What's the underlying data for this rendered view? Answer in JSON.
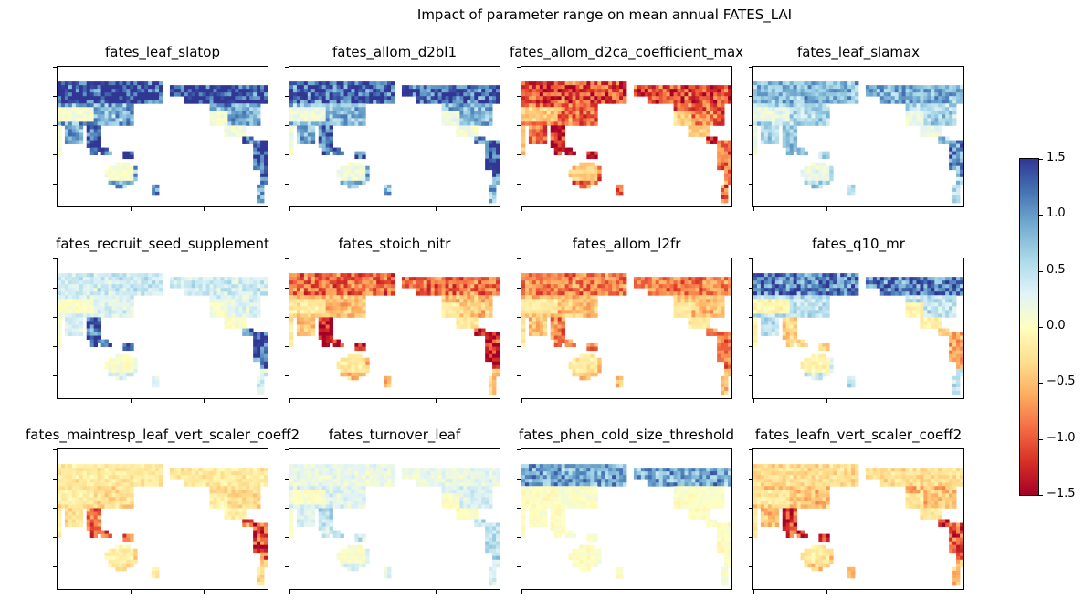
{
  "chart_data": {
    "type": "heatmap",
    "title": "Impact of parameter range on mean annual FATES_LAI",
    "panels": [
      {
        "name": "fates_leaf_slatop",
        "pattern": {
          "boreal": 1.5,
          "temperate": 0.9,
          "tropics": 1.3,
          "south": 1.4,
          "arid": 0.1
        }
      },
      {
        "name": "fates_allom_d2bl1",
        "pattern": {
          "boreal": 1.3,
          "temperate": 0.8,
          "tropics": 1.2,
          "south": 1.45,
          "arid": 0.15
        }
      },
      {
        "name": "fates_allom_d2ca_coefficient_max",
        "pattern": {
          "boreal": -1.1,
          "temperate": -0.9,
          "tropics": -1.4,
          "south": -0.9,
          "arid": -0.4
        }
      },
      {
        "name": "fates_leaf_slamax",
        "pattern": {
          "boreal": 0.8,
          "temperate": 0.6,
          "tropics": 0.7,
          "south": 1.0,
          "arid": 0.2
        }
      },
      {
        "name": "fates_recruit_seed_supplement",
        "pattern": {
          "boreal": 0.4,
          "temperate": 0.3,
          "tropics": 1.3,
          "south": 1.4,
          "arid": 0.05
        }
      },
      {
        "name": "fates_stoich_nitr",
        "pattern": {
          "boreal": -0.9,
          "temperate": -0.5,
          "tropics": -1.4,
          "south": -1.4,
          "arid": -0.2
        }
      },
      {
        "name": "fates_allom_l2fr",
        "pattern": {
          "boreal": -0.8,
          "temperate": -0.5,
          "tropics": -0.8,
          "south": -0.8,
          "arid": -0.2
        }
      },
      {
        "name": "fates_q10_mr",
        "pattern": {
          "boreal": 1.1,
          "temperate": 0.5,
          "tropics": -0.4,
          "south": -0.6,
          "arid": -0.1
        }
      },
      {
        "name": "fates_maintresp_leaf_vert_scaler_coeff2",
        "pattern": {
          "boreal": -0.2,
          "temperate": -0.3,
          "tropics": -0.9,
          "south": -1.1,
          "arid": -0.15
        }
      },
      {
        "name": "fates_turnover_leaf",
        "pattern": {
          "boreal": 0.2,
          "temperate": 0.3,
          "tropics": 0.5,
          "south": 0.5,
          "arid": 0.05
        }
      },
      {
        "name": "fates_phen_cold_size_threshold",
        "pattern": {
          "boreal": 0.9,
          "temperate": 0.05,
          "tropics": 0.0,
          "south": 0.0,
          "arid": 0.0
        }
      },
      {
        "name": "fates_leafn_vert_scaler_coeff2",
        "pattern": {
          "boreal": -0.3,
          "temperate": -0.5,
          "tropics": -1.2,
          "south": -1.0,
          "arid": -0.2
        }
      }
    ],
    "colorbar": {
      "colormap": "RdYlBu",
      "range": [
        -1.5,
        1.5
      ],
      "ticks": [
        "1.5",
        "1.0",
        "0.5",
        "0.0",
        "−0.5",
        "−1.0",
        "−1.5"
      ]
    }
  }
}
